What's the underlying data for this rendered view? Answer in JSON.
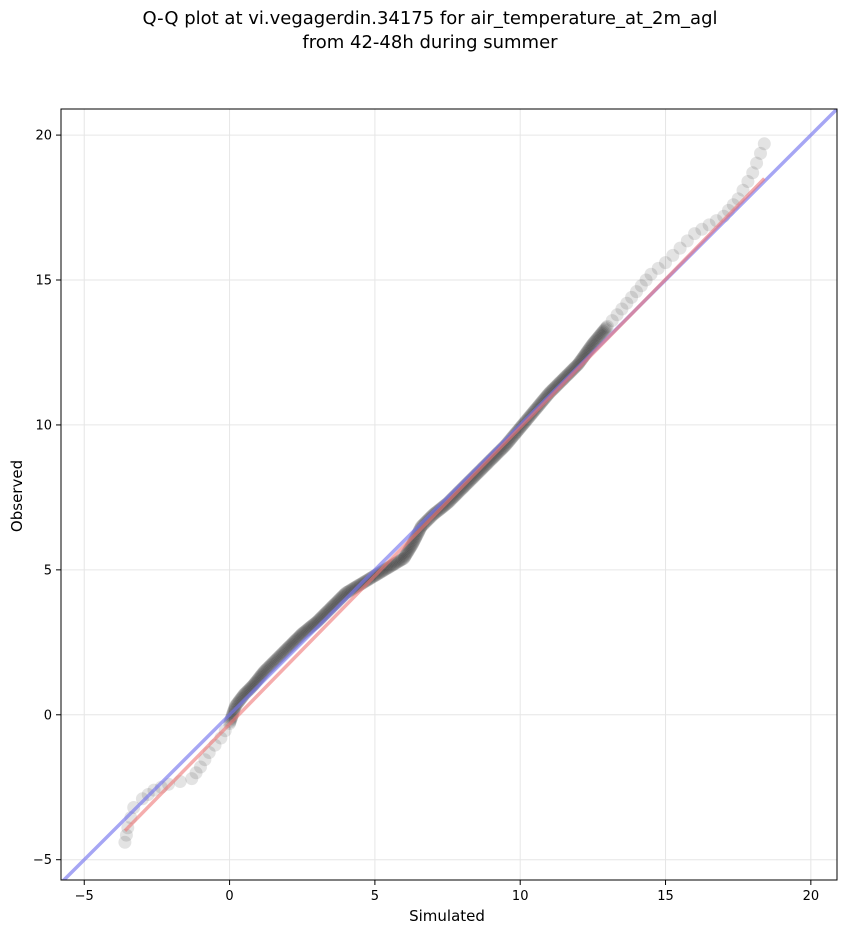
{
  "chart_data": {
    "type": "scatter",
    "title_line1": "Q-Q plot at vi.vegagerdin.34175 for air_temperature_at_2m_agl",
    "title_line2": "from 42-48h during summer",
    "xlabel": "Simulated",
    "ylabel": "Observed",
    "xlim": [
      -5.8,
      20.9
    ],
    "ylim": [
      -5.7,
      20.9
    ],
    "xticks": [
      -5,
      0,
      5,
      10,
      15,
      20
    ],
    "yticks": [
      -5,
      0,
      5,
      10,
      15,
      20
    ],
    "xtick_labels": [
      "−5",
      "0",
      "5",
      "10",
      "15",
      "20"
    ],
    "ytick_labels": [
      "−5",
      "0",
      "5",
      "10",
      "15",
      "20"
    ],
    "grid": true,
    "colors": {
      "points": "#000000",
      "identity_line": "#7777ee",
      "fit_line": "#ee7777"
    },
    "identity_line": {
      "x": [
        -5.8,
        20.9
      ],
      "y": [
        -5.8,
        20.9
      ]
    },
    "fit_line": {
      "x": [
        -3.6,
        18.4
      ],
      "y": [
        -4.0,
        18.5
      ]
    },
    "qq_curve": {
      "x": [
        -3.6,
        -3.5,
        -3.3,
        -3.0,
        -2.6,
        -2.1,
        -1.7,
        -1.3,
        -1.0,
        -0.7,
        -0.3,
        0.0,
        0.2,
        0.5,
        0.8,
        1.2,
        1.6,
        2.0,
        2.5,
        3.0,
        3.5,
        4.0,
        4.5,
        5.0,
        5.5,
        6.0,
        6.3,
        6.6,
        7.0,
        7.5,
        8.0,
        8.5,
        9.0,
        9.5,
        10.0,
        10.5,
        11.0,
        11.5,
        12.0,
        12.5,
        13.0,
        13.5,
        14.0,
        14.5,
        15.0,
        15.5,
        16.0,
        16.5,
        17.0,
        17.5,
        18.0,
        18.4
      ],
      "y": [
        -4.4,
        -3.9,
        -3.2,
        -2.9,
        -2.6,
        -2.4,
        -2.3,
        -2.2,
        -1.8,
        -1.3,
        -0.8,
        -0.3,
        0.3,
        0.7,
        1.0,
        1.5,
        1.9,
        2.3,
        2.8,
        3.2,
        3.7,
        4.2,
        4.5,
        4.8,
        5.1,
        5.4,
        5.9,
        6.5,
        6.9,
        7.3,
        7.8,
        8.3,
        8.8,
        9.3,
        9.9,
        10.5,
        11.1,
        11.6,
        12.1,
        12.8,
        13.4,
        14.0,
        14.6,
        15.2,
        15.6,
        16.1,
        16.6,
        16.9,
        17.2,
        17.8,
        18.7,
        19.7
      ]
    }
  }
}
